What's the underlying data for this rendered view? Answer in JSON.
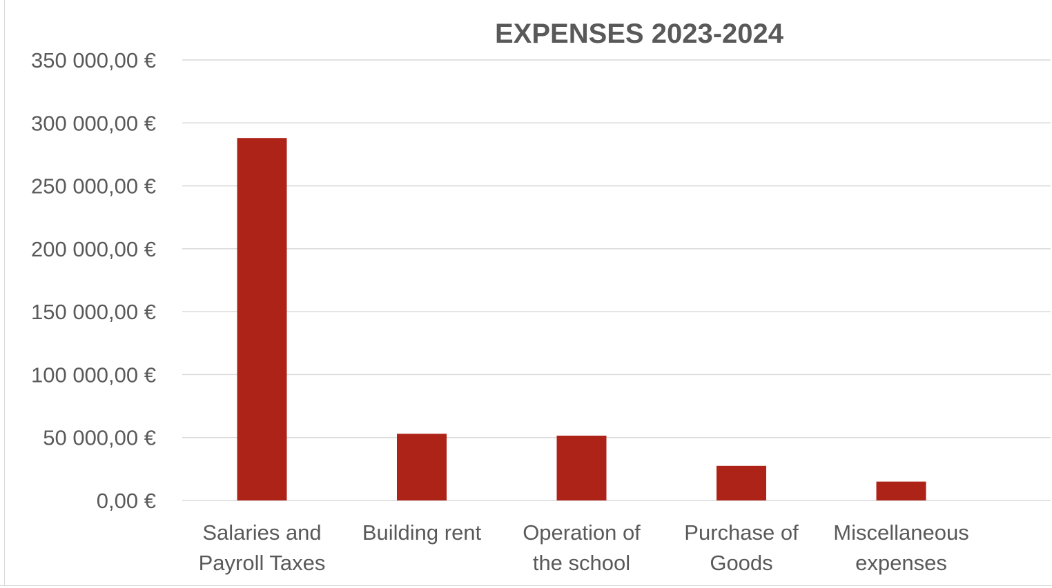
{
  "chart_data": {
    "type": "bar",
    "title": "EXPENSES 2023-2024",
    "categories": [
      [
        "Salaries and",
        "Payroll Taxes"
      ],
      [
        "Building rent"
      ],
      [
        "Operation of",
        "the school"
      ],
      [
        "Purchase of",
        "Goods"
      ],
      [
        "Miscellaneous",
        "expenses"
      ]
    ],
    "values": [
      288000,
      53000,
      51500,
      27500,
      15000
    ],
    "ylim": [
      0,
      350000
    ],
    "yticks": [
      0,
      50000,
      100000,
      150000,
      200000,
      250000,
      300000,
      350000
    ],
    "ytick_labels": [
      "0,00 €",
      "50 000,00 €",
      "100 000,00 €",
      "150 000,00 €",
      "200 000,00 €",
      "250 000,00 €",
      "300 000,00 €",
      "350 000,00 €"
    ],
    "xlabel": "",
    "ylabel": "",
    "grid": true,
    "legend": "none",
    "colors": {
      "bar": "#ae2318",
      "grid": "#d9d9d9",
      "text": "#595959"
    }
  }
}
